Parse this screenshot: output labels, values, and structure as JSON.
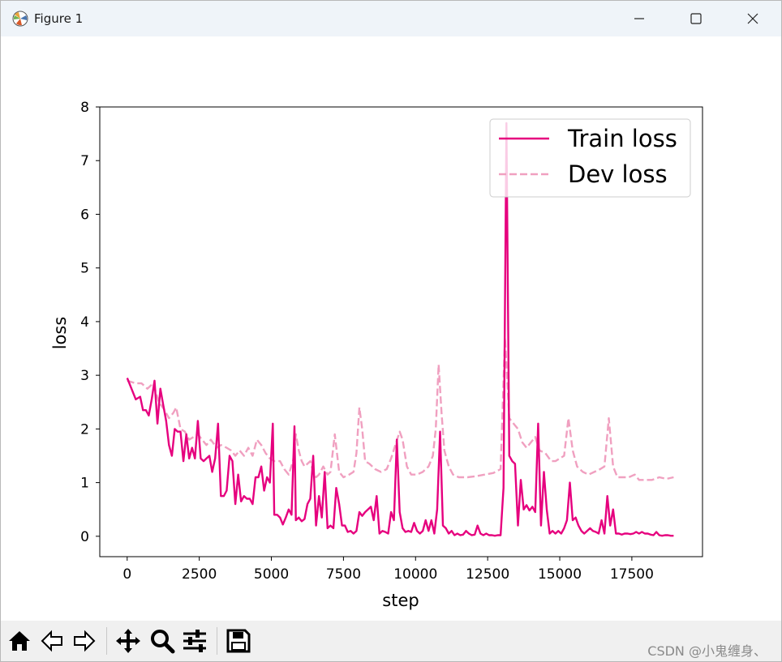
{
  "window": {
    "title": "Figure 1",
    "minimize_icon": "minimize-icon",
    "maximize_icon": "maximize-icon",
    "close_icon": "close-icon"
  },
  "toolbar": {
    "buttons": [
      "home-icon",
      "back-arrow-icon",
      "forward-arrow-icon",
      "pan-icon",
      "zoom-icon",
      "configure-subplots-icon",
      "save-icon"
    ],
    "watermark": "CSDN @小鬼缠身、"
  },
  "colors": {
    "train": "#e6007e",
    "dev": "#f0a0c0"
  },
  "chart_data": {
    "type": "line",
    "xlabel": "step",
    "ylabel": "loss",
    "xlim": [
      -950,
      19950
    ],
    "ylim": [
      -0.38,
      8.0
    ],
    "xticks": [
      0,
      2500,
      5000,
      7500,
      10000,
      12500,
      15000,
      17500
    ],
    "yticks": [
      0,
      1,
      2,
      3,
      4,
      5,
      6,
      7,
      8
    ],
    "legend_position": "top-right",
    "series": [
      {
        "name": "Train loss",
        "style": "solid",
        "points": [
          [
            0,
            2.95
          ],
          [
            150,
            2.75
          ],
          [
            300,
            2.55
          ],
          [
            450,
            2.6
          ],
          [
            550,
            2.35
          ],
          [
            650,
            2.35
          ],
          [
            750,
            2.25
          ],
          [
            850,
            2.55
          ],
          [
            950,
            2.9
          ],
          [
            1050,
            2.1
          ],
          [
            1150,
            2.75
          ],
          [
            1250,
            2.45
          ],
          [
            1350,
            2.15
          ],
          [
            1450,
            1.7
          ],
          [
            1550,
            1.5
          ],
          [
            1650,
            2.0
          ],
          [
            1750,
            1.95
          ],
          [
            1850,
            1.95
          ],
          [
            1950,
            1.4
          ],
          [
            2050,
            1.9
          ],
          [
            2150,
            1.45
          ],
          [
            2250,
            1.65
          ],
          [
            2350,
            1.45
          ],
          [
            2450,
            2.15
          ],
          [
            2550,
            1.45
          ],
          [
            2650,
            1.4
          ],
          [
            2750,
            1.45
          ],
          [
            2850,
            1.5
          ],
          [
            2950,
            1.2
          ],
          [
            3050,
            1.45
          ],
          [
            3150,
            2.1
          ],
          [
            3250,
            0.75
          ],
          [
            3350,
            0.75
          ],
          [
            3450,
            0.85
          ],
          [
            3550,
            1.5
          ],
          [
            3650,
            1.4
          ],
          [
            3750,
            0.6
          ],
          [
            3850,
            1.15
          ],
          [
            3950,
            0.65
          ],
          [
            4050,
            0.75
          ],
          [
            4150,
            0.7
          ],
          [
            4250,
            0.7
          ],
          [
            4350,
            0.6
          ],
          [
            4450,
            1.1
          ],
          [
            4550,
            1.1
          ],
          [
            4650,
            1.3
          ],
          [
            4750,
            0.85
          ],
          [
            4850,
            1.1
          ],
          [
            4950,
            1.0
          ],
          [
            5050,
            2.1
          ],
          [
            5100,
            0.4
          ],
          [
            5200,
            0.4
          ],
          [
            5300,
            0.35
          ],
          [
            5400,
            0.22
          ],
          [
            5500,
            0.35
          ],
          [
            5600,
            0.5
          ],
          [
            5700,
            0.4
          ],
          [
            5800,
            2.05
          ],
          [
            5850,
            0.3
          ],
          [
            5950,
            0.35
          ],
          [
            6050,
            0.28
          ],
          [
            6150,
            0.32
          ],
          [
            6250,
            0.6
          ],
          [
            6350,
            0.7
          ],
          [
            6450,
            1.5
          ],
          [
            6550,
            0.2
          ],
          [
            6650,
            0.75
          ],
          [
            6750,
            0.35
          ],
          [
            6850,
            1.2
          ],
          [
            6950,
            0.15
          ],
          [
            7050,
            0.2
          ],
          [
            7150,
            0.15
          ],
          [
            7250,
            0.9
          ],
          [
            7350,
            0.6
          ],
          [
            7450,
            0.2
          ],
          [
            7550,
            0.2
          ],
          [
            7650,
            0.08
          ],
          [
            7750,
            0.1
          ],
          [
            7850,
            0.05
          ],
          [
            7950,
            0.1
          ],
          [
            8050,
            0.45
          ],
          [
            8150,
            0.38
          ],
          [
            8250,
            0.45
          ],
          [
            8350,
            0.5
          ],
          [
            8450,
            0.55
          ],
          [
            8550,
            0.3
          ],
          [
            8650,
            0.75
          ],
          [
            8750,
            0.05
          ],
          [
            8850,
            0.1
          ],
          [
            8950,
            0.08
          ],
          [
            9050,
            0.05
          ],
          [
            9150,
            0.45
          ],
          [
            9250,
            0.3
          ],
          [
            9350,
            1.8
          ],
          [
            9450,
            0.45
          ],
          [
            9550,
            0.15
          ],
          [
            9650,
            0.08
          ],
          [
            9750,
            0.1
          ],
          [
            9850,
            0.08
          ],
          [
            9950,
            0.25
          ],
          [
            10050,
            0.1
          ],
          [
            10150,
            0.05
          ],
          [
            10250,
            0.1
          ],
          [
            10350,
            0.3
          ],
          [
            10450,
            0.1
          ],
          [
            10550,
            0.3
          ],
          [
            10650,
            0.05
          ],
          [
            10750,
            0.5
          ],
          [
            10850,
            1.95
          ],
          [
            10950,
            0.2
          ],
          [
            11050,
            0.15
          ],
          [
            11150,
            0.05
          ],
          [
            11250,
            0.1
          ],
          [
            11350,
            0.02
          ],
          [
            11450,
            0.05
          ],
          [
            11550,
            0.02
          ],
          [
            11650,
            0.03
          ],
          [
            11750,
            0.1
          ],
          [
            11850,
            0.05
          ],
          [
            11950,
            0.02
          ],
          [
            12050,
            0.03
          ],
          [
            12150,
            0.2
          ],
          [
            12250,
            0.05
          ],
          [
            12350,
            0.02
          ],
          [
            12450,
            0.05
          ],
          [
            12550,
            0.02
          ],
          [
            12650,
            0.02
          ],
          [
            12750,
            0.01
          ],
          [
            12850,
            0.02
          ],
          [
            12950,
            0.02
          ],
          [
            13050,
            0.9
          ],
          [
            13150,
            7.7
          ],
          [
            13250,
            1.5
          ],
          [
            13350,
            1.4
          ],
          [
            13450,
            1.35
          ],
          [
            13550,
            0.2
          ],
          [
            13650,
            1.05
          ],
          [
            13750,
            0.5
          ],
          [
            13850,
            0.58
          ],
          [
            13950,
            0.48
          ],
          [
            14050,
            0.55
          ],
          [
            14150,
            0.45
          ],
          [
            14250,
            2.1
          ],
          [
            14350,
            0.2
          ],
          [
            14450,
            1.2
          ],
          [
            14550,
            0.5
          ],
          [
            14650,
            0.05
          ],
          [
            14750,
            0.1
          ],
          [
            14850,
            0.05
          ],
          [
            14950,
            0.1
          ],
          [
            15050,
            0.05
          ],
          [
            15150,
            0.15
          ],
          [
            15250,
            0.3
          ],
          [
            15350,
            1.0
          ],
          [
            15450,
            0.3
          ],
          [
            15550,
            0.35
          ],
          [
            15650,
            0.2
          ],
          [
            15750,
            0.1
          ],
          [
            15850,
            0.05
          ],
          [
            15950,
            0.1
          ],
          [
            16050,
            0.15
          ],
          [
            16150,
            0.1
          ],
          [
            16250,
            0.08
          ],
          [
            16350,
            0.05
          ],
          [
            16450,
            0.3
          ],
          [
            16550,
            0.05
          ],
          [
            16650,
            0.75
          ],
          [
            16750,
            0.2
          ],
          [
            16850,
            0.5
          ],
          [
            16950,
            0.05
          ],
          [
            17050,
            0.05
          ],
          [
            17150,
            0.03
          ],
          [
            17250,
            0.05
          ],
          [
            17350,
            0.05
          ],
          [
            17450,
            0.04
          ],
          [
            17550,
            0.05
          ],
          [
            17650,
            0.08
          ],
          [
            17750,
            0.05
          ],
          [
            17850,
            0.08
          ],
          [
            17950,
            0.05
          ],
          [
            18050,
            0.05
          ],
          [
            18150,
            0.03
          ],
          [
            18250,
            0.02
          ],
          [
            18350,
            0.08
          ],
          [
            18450,
            0.02
          ],
          [
            18550,
            0.01
          ],
          [
            18650,
            0.02
          ],
          [
            18750,
            0.02
          ],
          [
            18850,
            0.01
          ],
          [
            18950,
            0.01
          ]
        ]
      },
      {
        "name": "Dev loss",
        "style": "dashed",
        "points": [
          [
            0,
            2.9
          ],
          [
            300,
            2.85
          ],
          [
            500,
            2.85
          ],
          [
            700,
            2.75
          ],
          [
            900,
            2.85
          ],
          [
            1100,
            2.5
          ],
          [
            1300,
            2.35
          ],
          [
            1450,
            2.2
          ],
          [
            1600,
            2.3
          ],
          [
            1700,
            2.4
          ],
          [
            1850,
            2.0
          ],
          [
            2000,
            1.95
          ],
          [
            2150,
            1.8
          ],
          [
            2300,
            1.85
          ],
          [
            2450,
            1.9
          ],
          [
            2600,
            1.8
          ],
          [
            2750,
            1.7
          ],
          [
            2900,
            1.8
          ],
          [
            3100,
            1.65
          ],
          [
            3250,
            1.7
          ],
          [
            3450,
            1.65
          ],
          [
            3600,
            1.6
          ],
          [
            3750,
            1.5
          ],
          [
            3900,
            1.6
          ],
          [
            4050,
            1.5
          ],
          [
            4200,
            1.65
          ],
          [
            4350,
            1.5
          ],
          [
            4500,
            1.8
          ],
          [
            4650,
            1.7
          ],
          [
            4800,
            1.55
          ],
          [
            4950,
            1.45
          ],
          [
            5100,
            1.4
          ],
          [
            5300,
            1.4
          ],
          [
            5450,
            1.25
          ],
          [
            5600,
            1.15
          ],
          [
            5750,
            1.4
          ],
          [
            5850,
            1.9
          ],
          [
            5950,
            1.6
          ],
          [
            6050,
            1.4
          ],
          [
            6150,
            1.3
          ],
          [
            6250,
            1.35
          ],
          [
            6350,
            1.4
          ],
          [
            6450,
            1.2
          ],
          [
            6550,
            1.1
          ],
          [
            6650,
            1.15
          ],
          [
            6800,
            1.3
          ],
          [
            6950,
            1.15
          ],
          [
            7050,
            1.2
          ],
          [
            7200,
            1.9
          ],
          [
            7350,
            1.2
          ],
          [
            7500,
            1.1
          ],
          [
            7700,
            1.15
          ],
          [
            7850,
            1.2
          ],
          [
            7950,
            1.55
          ],
          [
            8050,
            2.4
          ],
          [
            8150,
            2.0
          ],
          [
            8250,
            1.4
          ],
          [
            8400,
            1.35
          ],
          [
            8600,
            1.25
          ],
          [
            8800,
            1.2
          ],
          [
            9000,
            1.25
          ],
          [
            9150,
            1.45
          ],
          [
            9300,
            1.7
          ],
          [
            9450,
            1.95
          ],
          [
            9550,
            1.8
          ],
          [
            9700,
            1.3
          ],
          [
            9850,
            1.15
          ],
          [
            10050,
            1.15
          ],
          [
            10250,
            1.2
          ],
          [
            10450,
            1.3
          ],
          [
            10600,
            1.5
          ],
          [
            10700,
            2.0
          ],
          [
            10800,
            3.2
          ],
          [
            10900,
            2.3
          ],
          [
            11000,
            1.6
          ],
          [
            11150,
            1.3
          ],
          [
            11300,
            1.15
          ],
          [
            11500,
            1.1
          ],
          [
            11800,
            1.1
          ],
          [
            12100,
            1.12
          ],
          [
            12400,
            1.15
          ],
          [
            12700,
            1.18
          ],
          [
            12950,
            1.25
          ],
          [
            13100,
            3.7
          ],
          [
            13250,
            2.2
          ],
          [
            13400,
            2.1
          ],
          [
            13550,
            2.0
          ],
          [
            13700,
            1.75
          ],
          [
            13850,
            1.65
          ],
          [
            14000,
            1.75
          ],
          [
            14150,
            1.85
          ],
          [
            14300,
            1.6
          ],
          [
            14500,
            1.55
          ],
          [
            14700,
            1.4
          ],
          [
            14850,
            1.4
          ],
          [
            15000,
            1.45
          ],
          [
            15150,
            1.5
          ],
          [
            15300,
            2.2
          ],
          [
            15450,
            1.6
          ],
          [
            15600,
            1.3
          ],
          [
            15800,
            1.2
          ],
          [
            16000,
            1.15
          ],
          [
            16200,
            1.2
          ],
          [
            16400,
            1.25
          ],
          [
            16550,
            1.3
          ],
          [
            16700,
            2.2
          ],
          [
            16850,
            1.3
          ],
          [
            17000,
            1.1
          ],
          [
            17200,
            1.1
          ],
          [
            17400,
            1.1
          ],
          [
            17600,
            1.15
          ],
          [
            17750,
            1.05
          ],
          [
            17950,
            1.05
          ],
          [
            18200,
            1.05
          ],
          [
            18450,
            1.1
          ],
          [
            18700,
            1.07
          ],
          [
            18950,
            1.1
          ]
        ]
      }
    ]
  }
}
